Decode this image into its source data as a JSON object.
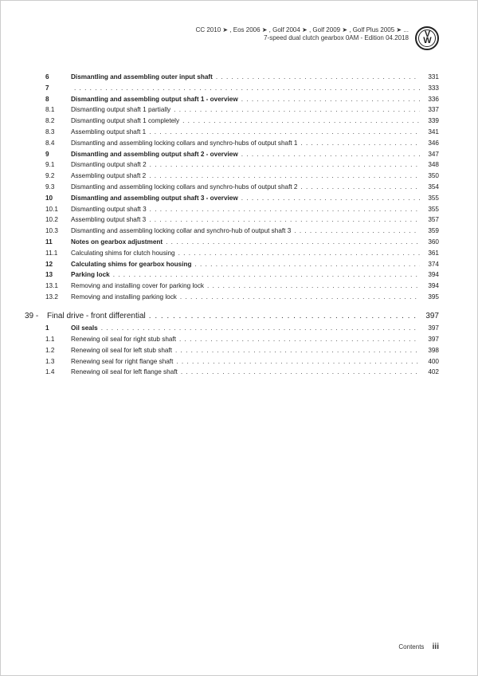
{
  "header": {
    "line1": "CC 2010 ➤ , Eos 2006 ➤ , Golf 2004 ➤ , Golf 2009 ➤ , Golf Plus 2005 ➤ ...",
    "line2": "7-speed dual clutch gearbox 0AM - Edition 04.2018"
  },
  "toc": {
    "items": [
      {
        "num": "6",
        "title": "Dismantling and assembling outer input shaft",
        "page": "331",
        "bold": true
      },
      {
        "num": "7",
        "title": "",
        "page": "333",
        "bold": true
      },
      {
        "num": "8",
        "title": "Dismantling and assembling output shaft 1 - overview",
        "page": "336",
        "bold": true
      },
      {
        "num": "8.1",
        "title": "Dismantling output shaft 1 partially",
        "page": "337",
        "bold": false
      },
      {
        "num": "8.2",
        "title": "Dismantling output shaft 1 completely",
        "page": "339",
        "bold": false
      },
      {
        "num": "8.3",
        "title": "Assembling output shaft 1",
        "page": "341",
        "bold": false
      },
      {
        "num": "8.4",
        "title": "Dismantling and assembling locking collars and synchro-hubs of output shaft 1",
        "page": "346",
        "bold": false
      },
      {
        "num": "9",
        "title": "Dismantling and assembling output shaft 2 - overview",
        "page": "347",
        "bold": true
      },
      {
        "num": "9.1",
        "title": "Dismantling output shaft 2",
        "page": "348",
        "bold": false
      },
      {
        "num": "9.2",
        "title": "Assembling output shaft 2",
        "page": "350",
        "bold": false
      },
      {
        "num": "9.3",
        "title": "Dismantling and assembling locking collars and synchro-hubs of output shaft 2",
        "page": "354",
        "bold": false
      },
      {
        "num": "10",
        "title": "Dismantling and assembling output shaft 3 - overview",
        "page": "355",
        "bold": true
      },
      {
        "num": "10.1",
        "title": "Dismantling output shaft 3",
        "page": "355",
        "bold": false
      },
      {
        "num": "10.2",
        "title": "Assembling output shaft 3",
        "page": "357",
        "bold": false
      },
      {
        "num": "10.3",
        "title": "Dismantling and assembling locking collar and synchro-hub of output shaft 3",
        "page": "359",
        "bold": false
      },
      {
        "num": "11",
        "title": "Notes on gearbox adjustment",
        "page": "360",
        "bold": true
      },
      {
        "num": "11.1",
        "title": "Calculating shims for clutch housing",
        "page": "361",
        "bold": false
      },
      {
        "num": "12",
        "title": "Calculating shims for gearbox housing",
        "page": "374",
        "bold": true
      },
      {
        "num": "13",
        "title": "Parking lock",
        "page": "394",
        "bold": true
      },
      {
        "num": "13.1",
        "title": "Removing and installing cover for parking lock",
        "page": "394",
        "bold": false
      },
      {
        "num": "13.2",
        "title": "Removing and installing parking lock",
        "page": "395",
        "bold": false
      }
    ],
    "section": {
      "num": "39 -",
      "title": "Final drive - front differential",
      "page": "397"
    },
    "items2": [
      {
        "num": "1",
        "title": "Oil seals",
        "page": "397",
        "bold": true
      },
      {
        "num": "1.1",
        "title": "Renewing oil seal for right stub shaft",
        "page": "397",
        "bold": false
      },
      {
        "num": "1.2",
        "title": "Renewing oil seal for left stub shaft",
        "page": "398",
        "bold": false
      },
      {
        "num": "1.3",
        "title": "Renewing seal for right flange shaft",
        "page": "400",
        "bold": false
      },
      {
        "num": "1.4",
        "title": "Renewing oil seal for left flange shaft",
        "page": "402",
        "bold": false
      }
    ]
  },
  "footer": {
    "label": "Contents",
    "page": "iii"
  }
}
